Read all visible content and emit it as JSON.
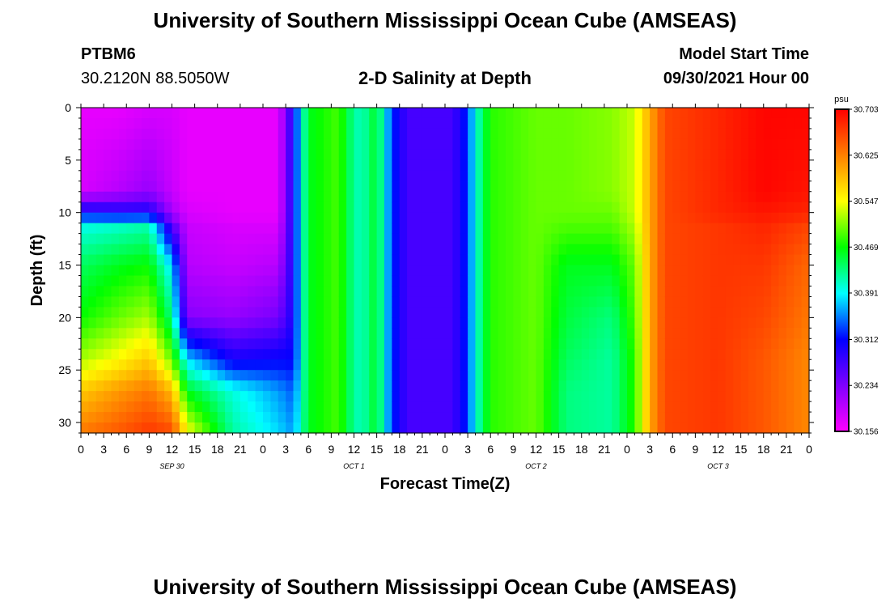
{
  "header": {
    "title": "University of Southern Mississippi Ocean Cube (AMSEAS)",
    "station": "PTBM6",
    "coords": "30.2120N  88.5050W",
    "plot_title": "2-D Salinity at Depth",
    "model_start_label": "Model Start Time",
    "model_start_value": "09/30/2021 Hour 00"
  },
  "footer": {
    "title": "University of Southern Mississippi Ocean Cube (AMSEAS)"
  },
  "chart_data": {
    "type": "heatmap",
    "title": "2-D Salinity at Depth",
    "xlabel": "Forecast Time(Z)",
    "ylabel": "Depth (ft)",
    "x_tick_labels": [
      "0",
      "3",
      "6",
      "9",
      "12",
      "15",
      "18",
      "21",
      "0",
      "3",
      "6",
      "9",
      "12",
      "15",
      "18",
      "21",
      "0",
      "3",
      "6",
      "9",
      "12",
      "15",
      "18",
      "21",
      "0",
      "3",
      "6",
      "9",
      "12",
      "15",
      "18",
      "21",
      "0"
    ],
    "x_range_hours": [
      0,
      96
    ],
    "day_labels": [
      "SEP 30",
      "OCT 1",
      "OCT 2",
      "OCT 3"
    ],
    "y_ticks": [
      0,
      5,
      10,
      15,
      20,
      25,
      30
    ],
    "y_range": [
      0,
      31
    ],
    "y_inverted": true,
    "colorbar": {
      "unit": "psu",
      "min": 30.156,
      "max": 30.703,
      "tick_values": [
        30.703,
        30.625,
        30.547,
        30.469,
        30.391,
        30.312,
        30.234,
        30.156
      ],
      "tick_labels": [
        "30.703",
        "30.625",
        "30.547",
        "30.469",
        "30.391",
        "30.312",
        "30.234",
        "30.156"
      ],
      "colors": [
        "#ff00ff",
        "#7f00ff",
        "#0000ff",
        "#00ffff",
        "#00ff00",
        "#ffff00",
        "#ff8000",
        "#ff0000"
      ]
    },
    "column_profiles": {
      "depths": [
        0,
        8,
        10,
        11.5,
        15,
        20,
        24,
        27,
        31
      ],
      "columns": [
        {
          "hour": 0,
          "values": [
            30.17,
            30.18,
            30.31,
            30.4,
            30.44,
            30.47,
            30.52,
            30.58,
            30.63
          ]
        },
        {
          "hour": 5,
          "values": [
            30.17,
            30.2,
            30.3,
            30.41,
            30.46,
            30.5,
            30.55,
            30.61,
            30.65
          ]
        },
        {
          "hour": 9,
          "values": [
            30.18,
            30.22,
            30.3,
            30.42,
            30.47,
            30.52,
            30.58,
            30.63,
            30.67
          ]
        },
        {
          "hour": 12,
          "values": [
            30.18,
            30.19,
            30.21,
            30.27,
            30.38,
            30.43,
            30.5,
            30.59,
            30.66
          ]
        },
        {
          "hour": 14,
          "values": [
            30.17,
            30.17,
            30.18,
            30.19,
            30.2,
            30.23,
            30.38,
            30.46,
            30.55
          ]
        },
        {
          "hour": 20,
          "values": [
            30.17,
            30.17,
            30.17,
            30.18,
            30.19,
            30.22,
            30.3,
            30.4,
            30.42
          ]
        },
        {
          "hour": 26,
          "values": [
            30.17,
            30.17,
            30.17,
            30.18,
            30.2,
            30.24,
            30.31,
            30.36,
            30.38
          ]
        },
        {
          "hour": 28,
          "values": [
            30.3,
            30.3,
            30.3,
            30.3,
            30.3,
            30.3,
            30.31,
            30.34,
            30.36
          ]
        },
        {
          "hour": 29,
          "values": [
            30.39,
            30.39,
            30.39,
            30.39,
            30.39,
            30.39,
            30.39,
            30.4,
            30.41
          ]
        },
        {
          "hour": 30,
          "values": [
            30.46,
            30.46,
            30.46,
            30.46,
            30.46,
            30.46,
            30.46,
            30.46,
            30.46
          ]
        },
        {
          "hour": 34,
          "values": [
            30.49,
            30.49,
            30.49,
            30.49,
            30.49,
            30.49,
            30.49,
            30.49,
            30.49
          ]
        },
        {
          "hour": 36,
          "values": [
            30.42,
            30.42,
            30.42,
            30.42,
            30.42,
            30.42,
            30.42,
            30.42,
            30.42
          ]
        },
        {
          "hour": 37,
          "values": [
            30.41,
            30.41,
            30.41,
            30.41,
            30.41,
            30.41,
            30.41,
            30.41,
            30.41
          ]
        },
        {
          "hour": 39,
          "values": [
            30.46,
            30.46,
            30.46,
            30.46,
            30.46,
            30.46,
            30.46,
            30.46,
            30.46
          ]
        },
        {
          "hour": 41,
          "values": [
            30.33,
            30.33,
            30.33,
            30.33,
            30.33,
            30.33,
            30.33,
            30.33,
            30.33
          ]
        },
        {
          "hour": 43,
          "values": [
            30.27,
            30.27,
            30.27,
            30.27,
            30.27,
            30.27,
            30.27,
            30.27,
            30.27
          ]
        },
        {
          "hour": 49,
          "values": [
            30.27,
            30.27,
            30.27,
            30.27,
            30.27,
            30.27,
            30.27,
            30.27,
            30.27
          ]
        },
        {
          "hour": 51,
          "values": [
            30.33,
            30.33,
            30.33,
            30.33,
            30.33,
            30.33,
            30.33,
            30.33,
            30.33
          ]
        },
        {
          "hour": 52,
          "values": [
            30.4,
            30.4,
            30.4,
            30.4,
            30.4,
            30.4,
            30.4,
            30.4,
            30.4
          ]
        },
        {
          "hour": 54,
          "values": [
            30.48,
            30.48,
            30.48,
            30.48,
            30.48,
            30.48,
            30.48,
            30.48,
            30.48
          ]
        },
        {
          "hour": 60,
          "values": [
            30.5,
            30.5,
            30.5,
            30.5,
            30.5,
            30.5,
            30.5,
            30.5,
            30.5
          ]
        },
        {
          "hour": 64,
          "values": [
            30.5,
            30.5,
            30.5,
            30.49,
            30.46,
            30.45,
            30.44,
            30.43,
            30.43
          ]
        },
        {
          "hour": 70,
          "values": [
            30.51,
            30.51,
            30.5,
            30.49,
            30.46,
            30.43,
            30.42,
            30.42,
            30.42
          ]
        },
        {
          "hour": 73,
          "values": [
            30.53,
            30.53,
            30.53,
            30.52,
            30.5,
            30.49,
            30.48,
            30.48,
            30.48
          ]
        },
        {
          "hour": 75,
          "values": [
            30.6,
            30.6,
            30.6,
            30.6,
            30.6,
            30.6,
            30.6,
            30.6,
            30.6
          ]
        },
        {
          "hour": 77,
          "values": [
            30.66,
            30.66,
            30.66,
            30.66,
            30.66,
            30.66,
            30.66,
            30.66,
            30.66
          ]
        },
        {
          "hour": 84,
          "values": [
            30.68,
            30.68,
            30.68,
            30.67,
            30.67,
            30.67,
            30.67,
            30.67,
            30.67
          ]
        },
        {
          "hour": 90,
          "values": [
            30.7,
            30.7,
            30.69,
            30.68,
            30.67,
            30.66,
            30.65,
            30.65,
            30.65
          ]
        },
        {
          "hour": 96,
          "values": [
            30.7,
            30.69,
            30.68,
            30.66,
            30.64,
            30.63,
            30.62,
            30.62,
            30.62
          ]
        }
      ]
    }
  }
}
